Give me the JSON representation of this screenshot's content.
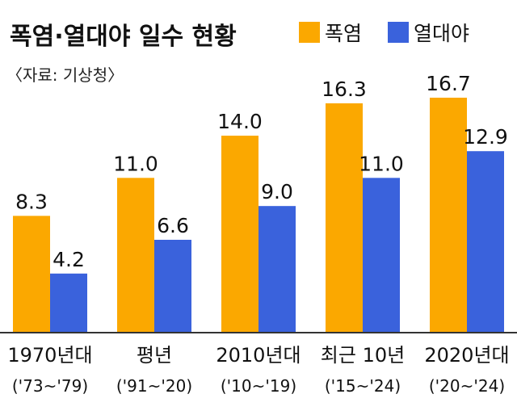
{
  "chart_data": {
    "type": "bar",
    "title": "폭염·열대야 일수 현황",
    "source": "〈자료: 기상청〉",
    "categories": [
      "1970년대",
      "평년",
      "2010년대",
      "최근 10년",
      "2020년대"
    ],
    "category_sublabels": [
      "('73~'79)",
      "('91~'20)",
      "('10~'19)",
      "('15~'24)",
      "('20~'24)"
    ],
    "series": [
      {
        "name": "폭염",
        "values": [
          8.3,
          11.0,
          14.0,
          16.3,
          16.7
        ],
        "labels": [
          "8.3",
          "11.0",
          "14.0",
          "16.3",
          "16.7"
        ],
        "color": "#FBA800"
      },
      {
        "name": "열대야",
        "values": [
          4.2,
          6.6,
          9.0,
          11.0,
          12.9
        ],
        "labels": [
          "4.2",
          "6.6",
          "9.0",
          "11.0",
          "12.9"
        ],
        "color": "#3A62DC"
      }
    ],
    "ylim": [
      0,
      16.7
    ],
    "grid": false,
    "legend": "top-right",
    "baseline_color": "#333333"
  }
}
